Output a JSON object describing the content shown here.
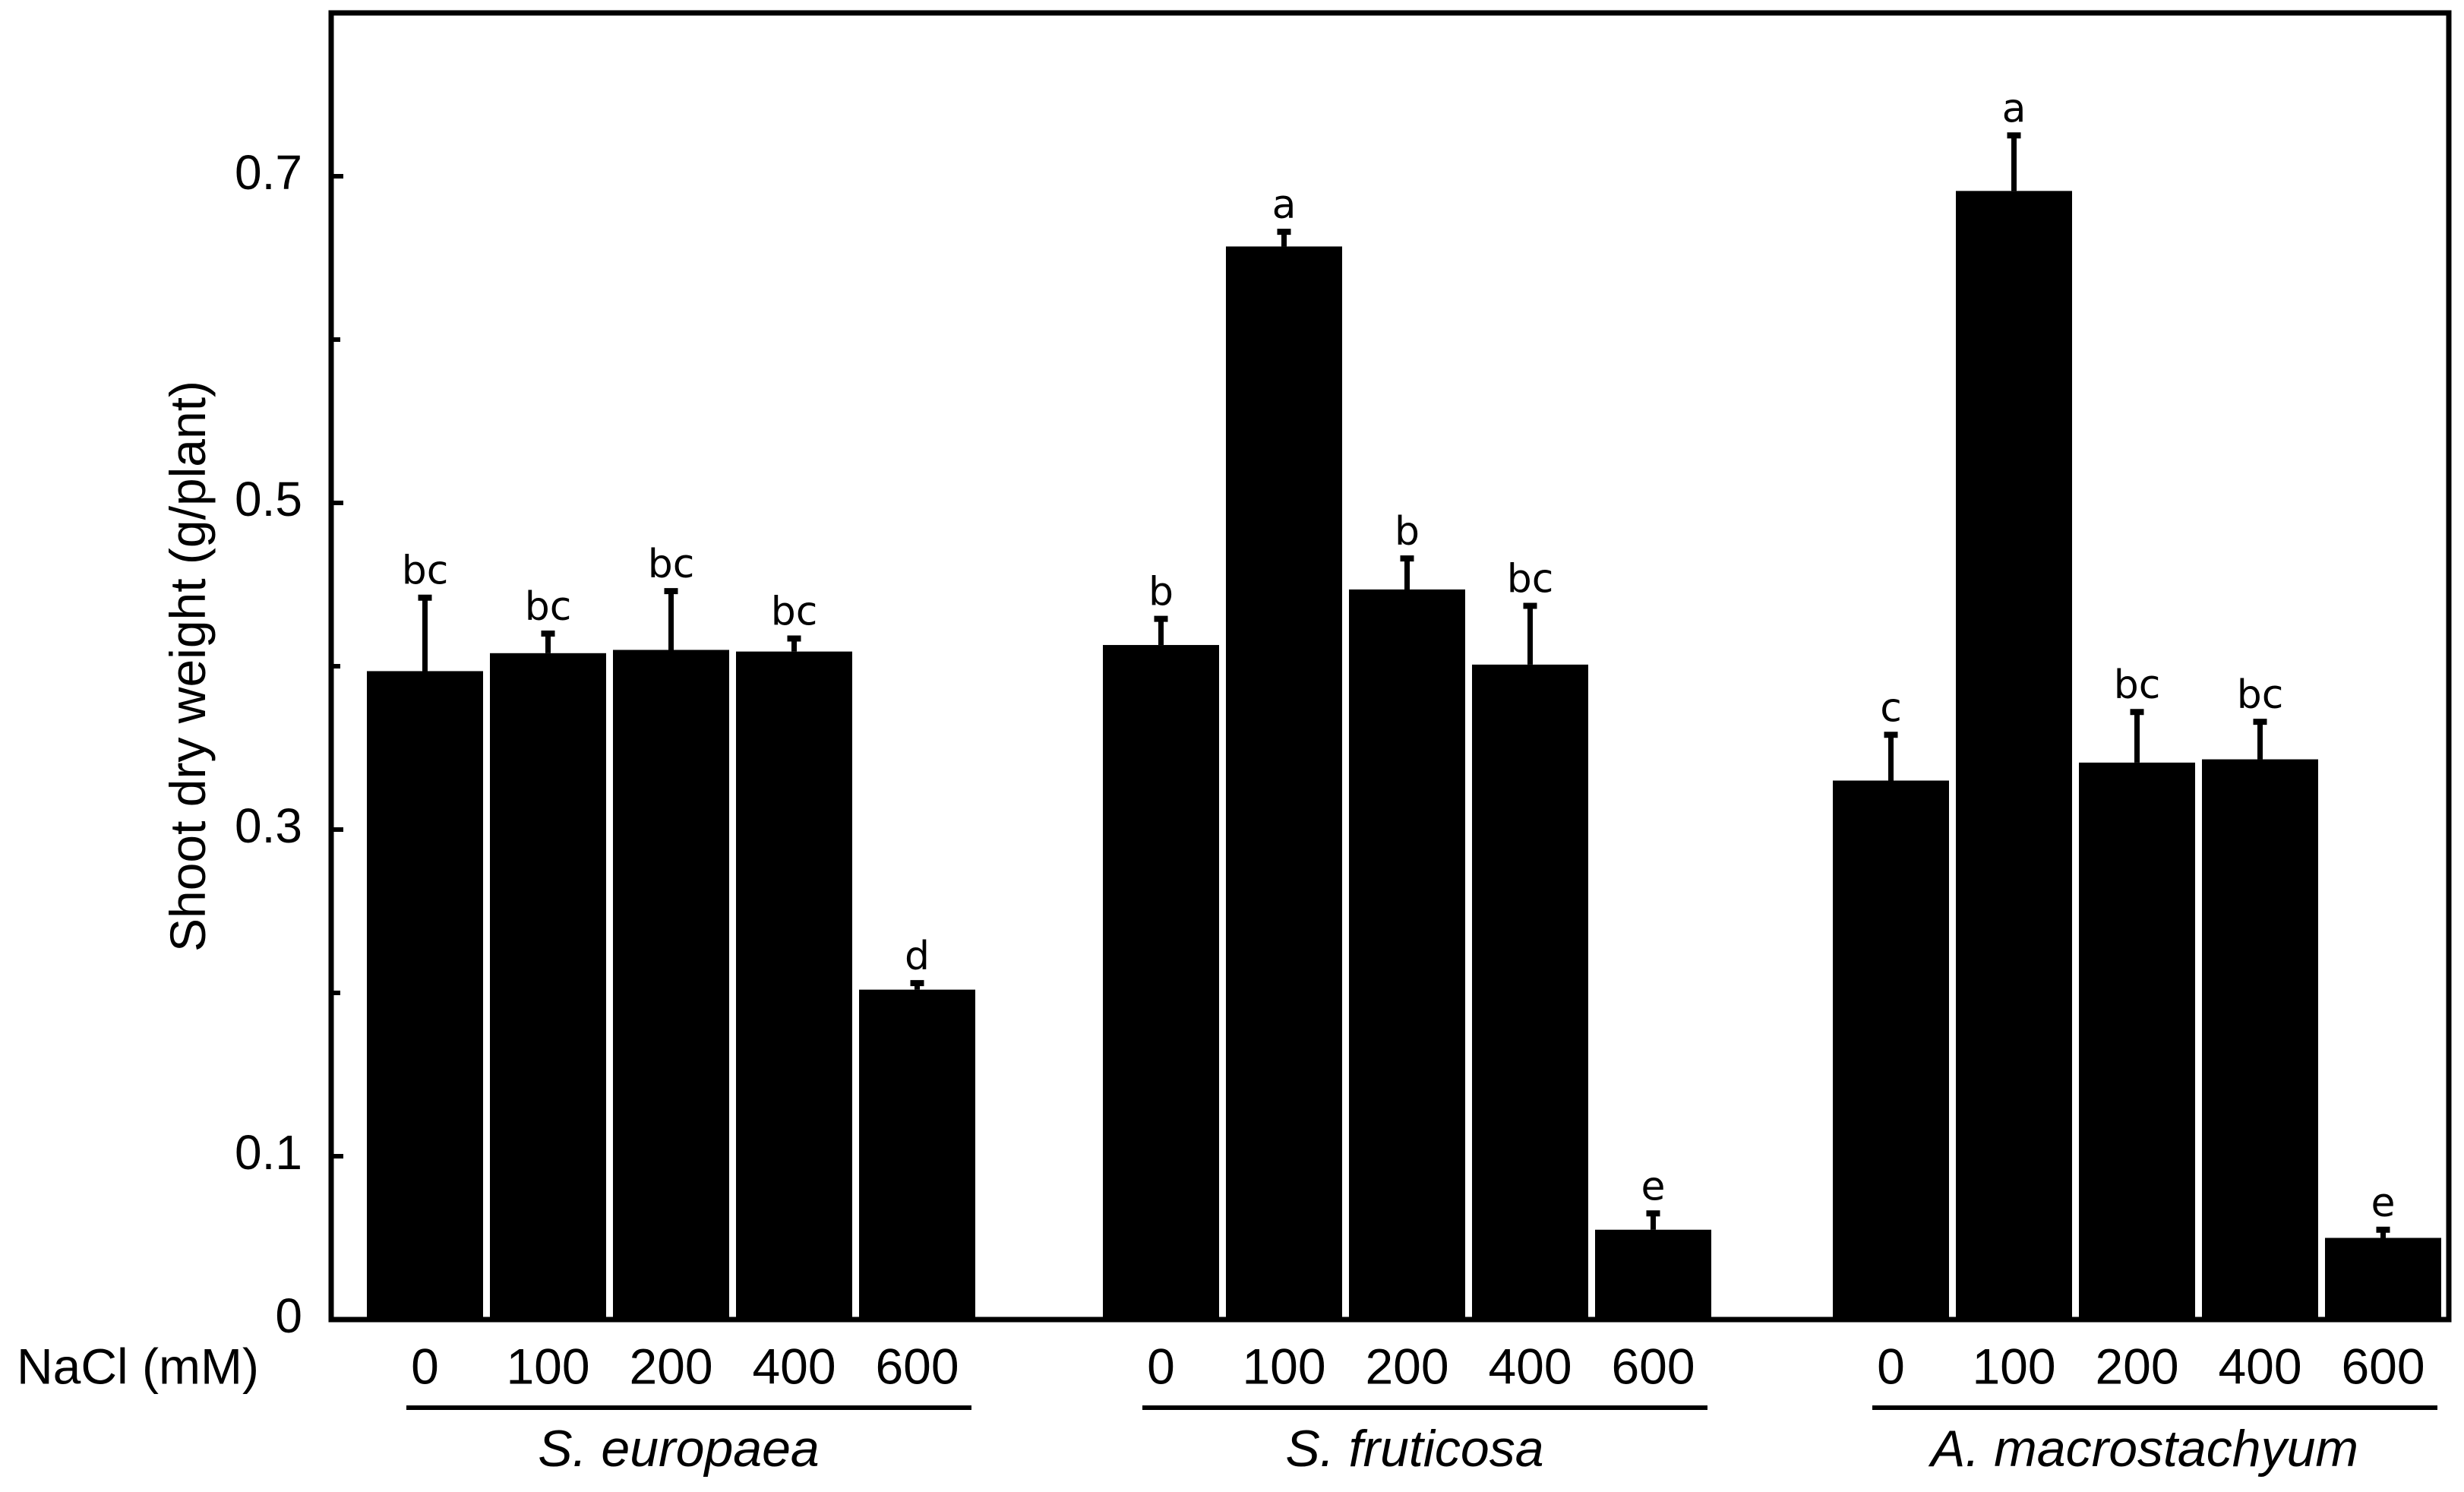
{
  "chart_data": {
    "type": "bar",
    "title": "",
    "xlabel": "NaCl (mM)",
    "ylabel": "Shoot dry weight (g/plant)",
    "ylim": [
      0,
      0.8
    ],
    "yticks": [
      0,
      0.1,
      0.3,
      0.5,
      0.7
    ],
    "ytick_labels": [
      "0",
      "0.1",
      "0.3",
      "0.5",
      "0.7"
    ],
    "minor_yticks": [
      0.2,
      0.4,
      0.6,
      0.8
    ],
    "grid": false,
    "bar_color": "#000000",
    "groups": [
      {
        "species": "S. europaea",
        "categories": [
          "0",
          "100",
          "200",
          "400",
          "600"
        ],
        "values": [
          0.397,
          0.408,
          0.41,
          0.409,
          0.202
        ],
        "errors": [
          0.045,
          0.012,
          0.036,
          0.008,
          0.004
        ],
        "letters": [
          "bc",
          "bc",
          "bc",
          "bc",
          "d"
        ]
      },
      {
        "species": "S. fruticosa",
        "categories": [
          "0",
          "100",
          "200",
          "400",
          "600"
        ],
        "values": [
          0.413,
          0.657,
          0.447,
          0.401,
          0.055
        ],
        "errors": [
          0.016,
          0.009,
          0.019,
          0.036,
          0.01
        ],
        "letters": [
          "b",
          "a",
          "b",
          "bc",
          "e"
        ]
      },
      {
        "species": "A. macrostachyum",
        "categories": [
          "0",
          "100",
          "200",
          "400",
          "600"
        ],
        "values": [
          0.33,
          0.691,
          0.341,
          0.343,
          0.05
        ],
        "errors": [
          0.028,
          0.034,
          0.031,
          0.023,
          0.005
        ],
        "letters": [
          "c",
          "a",
          "bc",
          "bc",
          "e"
        ]
      }
    ]
  }
}
